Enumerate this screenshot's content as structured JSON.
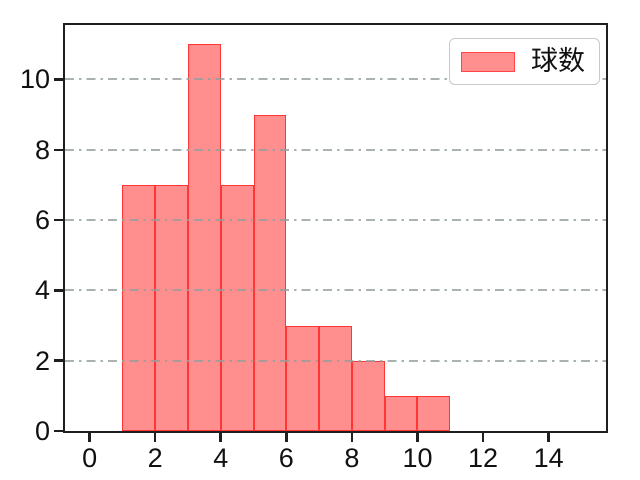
{
  "chart_data": {
    "type": "bar",
    "kind": "histogram",
    "title": "",
    "xlabel": "",
    "ylabel": "",
    "bin_edges": [
      1,
      2,
      3,
      4,
      5,
      6,
      7,
      8,
      9,
      10,
      11
    ],
    "values": [
      7,
      7,
      11,
      7,
      9,
      3,
      3,
      2,
      1,
      1
    ],
    "xticks": [
      0,
      2,
      4,
      6,
      8,
      10,
      12,
      14
    ],
    "yticks": [
      0,
      2,
      4,
      6,
      8,
      10
    ],
    "xlim": [
      -0.75,
      15.75
    ],
    "ylim": [
      0,
      11.55
    ],
    "grid": {
      "axis": "y",
      "linestyle": "dash-dot",
      "color": "rgba(148,158,158,0.8)",
      "above_bars": true
    },
    "legend": {
      "position": "upper-right",
      "entries": [
        {
          "label": "球数",
          "swatch_fill": "rgba(255,0,0,0.44)",
          "swatch_edge": "rgba(255,0,0,0.5)"
        }
      ]
    },
    "colors": {
      "bar_fill": "rgba(255,0,0,0.44)",
      "bar_edge": "rgba(255,0,0,0.62)",
      "spine": "#1f1f1f",
      "tick_text": "#111111",
      "background": "#ffffff"
    }
  }
}
